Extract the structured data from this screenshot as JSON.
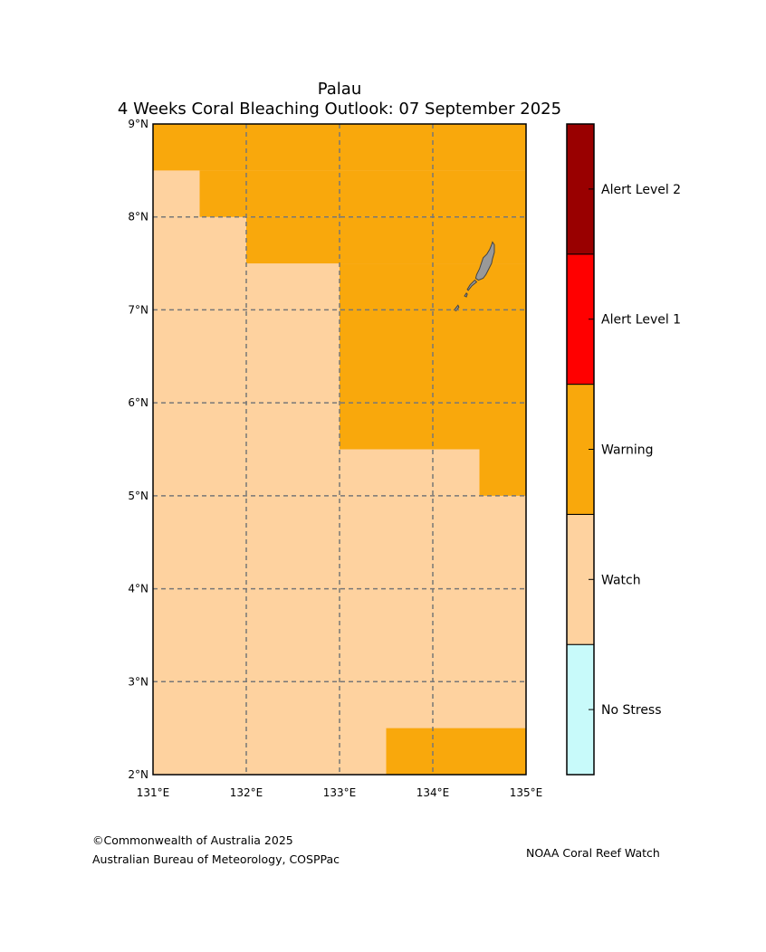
{
  "title": {
    "line1": "Palau",
    "line2": "4 Weeks Coral Bleaching Outlook: 07 September 2025"
  },
  "map": {
    "lon_range": [
      131,
      135
    ],
    "lat_range": [
      2,
      9
    ],
    "lon_ticks": [
      131,
      132,
      133,
      134,
      135
    ],
    "lat_ticks": [
      2,
      3,
      4,
      5,
      6,
      7,
      8,
      9
    ],
    "lon_labels": [
      "131°E",
      "132°E",
      "133°E",
      "134°E",
      "135°E"
    ],
    "lat_labels": [
      "2°N",
      "3°N",
      "4°N",
      "5°N",
      "6°N",
      "7°N",
      "8°N",
      "9°N"
    ],
    "base_level": "Watch",
    "regions": [
      {
        "level": "Warning",
        "lon": [
          131.0,
          135.0
        ],
        "lat": [
          8.5,
          9.0
        ]
      },
      {
        "level": "Warning",
        "lon": [
          131.5,
          135.0
        ],
        "lat": [
          8.0,
          8.5
        ]
      },
      {
        "level": "Warning",
        "lon": [
          132.0,
          135.0
        ],
        "lat": [
          7.5,
          8.0
        ]
      },
      {
        "level": "Warning",
        "lon": [
          133.0,
          135.0
        ],
        "lat": [
          5.5,
          7.5
        ]
      },
      {
        "level": "Warning",
        "lon": [
          134.5,
          135.0
        ],
        "lat": [
          5.0,
          5.5
        ]
      },
      {
        "level": "Warning",
        "lon": [
          133.5,
          135.0
        ],
        "lat": [
          2.0,
          2.5
        ]
      }
    ],
    "land_color": "#999999"
  },
  "legend": {
    "levels": [
      {
        "label": "No Stress",
        "color": "#c8fafa"
      },
      {
        "label": "Watch",
        "color": "#fed29f"
      },
      {
        "label": "Warning",
        "color": "#f9a80c"
      },
      {
        "label": "Alert Level 1",
        "color": "#ff0000"
      },
      {
        "label": "Alert Level 2",
        "color": "#990000"
      }
    ]
  },
  "footer": {
    "copyright": "©Commonwealth of Australia 2025",
    "org": "Australian Bureau of Meteorology, COSPPac",
    "partner": "NOAA Coral Reef Watch"
  }
}
